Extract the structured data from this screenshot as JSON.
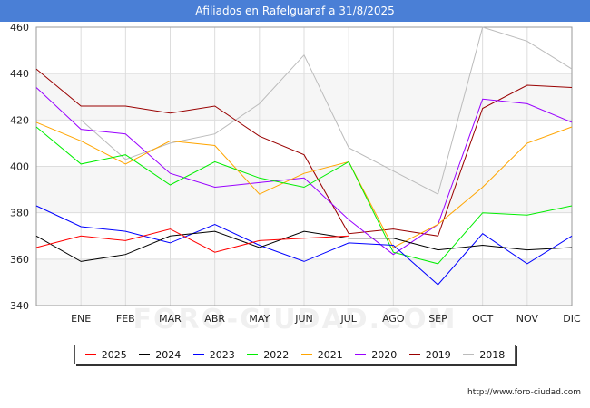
{
  "title": "Afiliados en Rafelguaraf a 31/8/2025",
  "source": "http://www.foro-ciudad.com",
  "watermark": "FORO-CIUDAD.COM",
  "chart_data": {
    "type": "line",
    "title": "Afiliados en Rafelguaraf a 31/8/2025",
    "categories": [
      "",
      "ENE",
      "FEB",
      "MAR",
      "ABR",
      "MAY",
      "JUN",
      "JUL",
      "AGO",
      "SEP",
      "OCT",
      "NOV",
      "DIC"
    ],
    "ylim": [
      340,
      460
    ],
    "yticks": [
      340,
      360,
      380,
      400,
      420,
      440,
      460
    ],
    "grid": true,
    "legend_position": "bottom",
    "series": [
      {
        "name": "2025",
        "color": "#ff0000",
        "values": [
          365,
          370,
          368,
          373,
          363,
          368,
          369,
          370,
          null,
          null,
          null,
          null,
          null
        ]
      },
      {
        "name": "2024",
        "color": "#000000",
        "values": [
          370,
          359,
          362,
          370,
          372,
          365,
          372,
          369,
          369,
          364,
          366,
          364,
          365
        ]
      },
      {
        "name": "2023",
        "color": "#0000ff",
        "values": [
          383,
          374,
          372,
          367,
          375,
          366,
          359,
          367,
          366,
          349,
          371,
          358,
          370
        ]
      },
      {
        "name": "2022",
        "color": "#00ee00",
        "values": [
          417,
          401,
          405,
          392,
          402,
          395,
          391,
          402,
          363,
          358,
          380,
          379,
          383
        ]
      },
      {
        "name": "2021",
        "color": "#ffa500",
        "values": [
          419,
          411,
          401,
          411,
          409,
          388,
          397,
          402,
          365,
          375,
          391,
          410,
          417
        ]
      },
      {
        "name": "2020",
        "color": "#9900ff",
        "values": [
          434,
          416,
          414,
          397,
          391,
          393,
          395,
          377,
          362,
          375,
          429,
          427,
          419
        ]
      },
      {
        "name": "2019",
        "color": "#990000",
        "values": [
          442,
          426,
          426,
          423,
          426,
          413,
          405,
          371,
          373,
          370,
          425,
          435,
          434
        ]
      },
      {
        "name": "2018",
        "color": "#bbbbbb",
        "values": [
          null,
          420,
          403,
          410,
          414,
          427,
          448,
          408,
          398,
          388,
          460,
          454,
          442
        ]
      }
    ]
  }
}
